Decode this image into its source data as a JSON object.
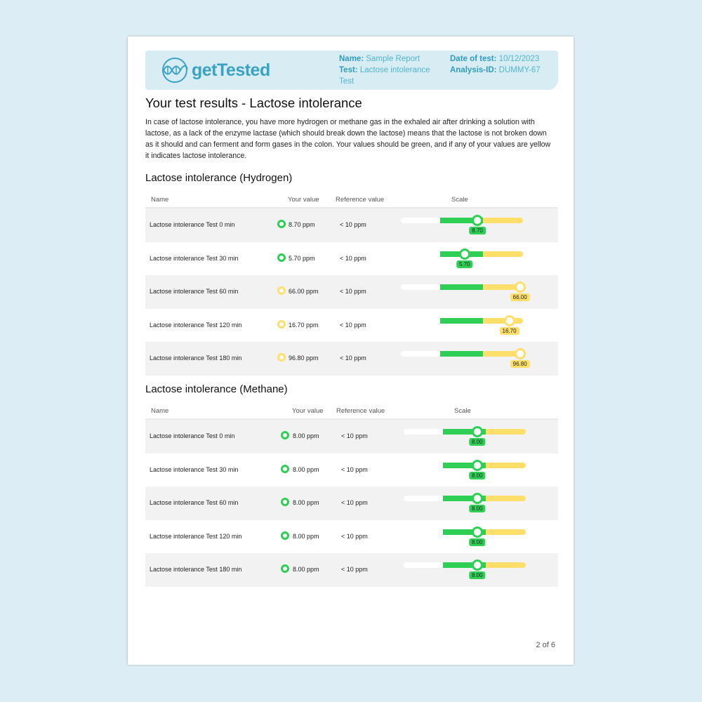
{
  "header": {
    "brand": "getTested",
    "name_label": "Name:",
    "name_value": "Sample Report",
    "test_label": "Test:",
    "test_value": "Lactose intolerance Test",
    "date_label": "Date of test:",
    "date_value": "10/12/2023",
    "id_label": "Analysis-ID:",
    "id_value": "DUMMY-67"
  },
  "title": "Your test results - Lactose intolerance",
  "intro": "In case of lactose intolerance, you have more hydrogen or methane gas in the exhaled air after drinking a solution with lactose, as a lack of the enzyme lactase (which should break down the lactose) means that the lactose is not broken down as it should and can ferment and form gases in the colon. Your values should be green, and if any of your values are yellow it indicates lactose intolerance.",
  "colors": {
    "green": "#2fcf56",
    "yellow": "#ffdf6a",
    "brand": "#3aa2c2"
  },
  "columns": {
    "name": "Name",
    "value": "Your value",
    "reference": "Reference value",
    "scale": "Scale"
  },
  "sections": [
    {
      "title": "Lactose intolerance (Hydrogen)",
      "rows": [
        {
          "name": "Lactose intolerance Test 0 min",
          "value": "8.70 ppm",
          "num": 8.7,
          "label": "8.70",
          "reference": "< 10 ppm",
          "status": "green"
        },
        {
          "name": "Lactose intolerance Test 30 min",
          "value": "5.70 ppm",
          "num": 5.7,
          "label": "5.70",
          "reference": "< 10 ppm",
          "status": "green"
        },
        {
          "name": "Lactose intolerance Test 60 min",
          "value": "66.00 ppm",
          "num": 66.0,
          "label": "66.00",
          "reference": "< 10 ppm",
          "status": "yellow"
        },
        {
          "name": "Lactose intolerance Test 120 min",
          "value": "16.70 ppm",
          "num": 16.7,
          "label": "16.70",
          "reference": "< 10 ppm",
          "status": "yellow"
        },
        {
          "name": "Lactose intolerance Test 180 min",
          "value": "96.80 ppm",
          "num": 96.8,
          "label": "96.80",
          "reference": "< 10 ppm",
          "status": "yellow"
        }
      ]
    },
    {
      "title": "Lactose intolerance (Methane)",
      "rows": [
        {
          "name": "Lactose intolerance Test 0 min",
          "value": "8.00 ppm",
          "num": 8.0,
          "label": "8.00",
          "reference": "< 10 ppm",
          "status": "green"
        },
        {
          "name": "Lactose intolerance Test 30 min",
          "value": "8.00 ppm",
          "num": 8.0,
          "label": "8.00",
          "reference": "< 10 ppm",
          "status": "green"
        },
        {
          "name": "Lactose intolerance Test 60 min",
          "value": "8.00 ppm",
          "num": 8.0,
          "label": "8.00",
          "reference": "< 10 ppm",
          "status": "green"
        },
        {
          "name": "Lactose intolerance Test 120 min",
          "value": "8.00 ppm",
          "num": 8.0,
          "label": "8.00",
          "reference": "< 10 ppm",
          "status": "green"
        },
        {
          "name": "Lactose intolerance Test 180 min",
          "value": "8.00 ppm",
          "num": 8.0,
          "label": "8.00",
          "reference": "< 10 ppm",
          "status": "green"
        }
      ]
    }
  ],
  "page_number": "2 of 6"
}
